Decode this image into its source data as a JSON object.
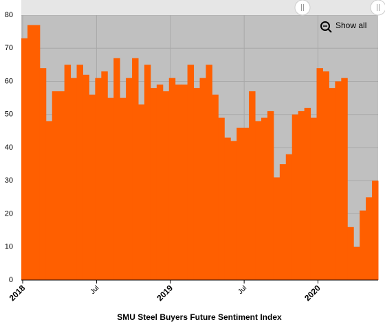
{
  "chart_data": {
    "type": "step-area",
    "title": "SMU Steel Buyers Future Sentiment Index",
    "zoom_button": "Show all",
    "categories": [
      "2018",
      null,
      null,
      null,
      null,
      null,
      null,
      null,
      null,
      null,
      null,
      null,
      "Jul",
      null,
      null,
      null,
      null,
      null,
      null,
      null,
      null,
      null,
      null,
      null,
      "2019",
      null,
      null,
      null,
      null,
      null,
      null,
      null,
      null,
      null,
      null,
      null,
      "Jul",
      null,
      null,
      null,
      null,
      null,
      null,
      null,
      null,
      null,
      null,
      null,
      "2020",
      null,
      null,
      null,
      null,
      null,
      null,
      null,
      null,
      null
    ],
    "values": [
      73,
      77,
      77,
      64,
      48,
      57,
      57,
      65,
      61,
      65,
      62,
      56,
      61,
      63,
      55,
      67,
      55,
      61,
      67,
      53,
      65,
      58,
      59,
      57,
      61,
      59,
      59,
      65,
      58,
      61,
      65,
      56,
      49,
      43,
      42,
      46,
      46,
      57,
      48,
      49,
      51,
      31,
      35,
      38,
      50,
      51,
      52,
      49,
      64,
      63,
      58,
      60,
      61,
      16,
      10,
      21,
      25,
      30
    ],
    "color": "#ff5f00",
    "ylim": [
      0,
      80
    ],
    "yticks": [
      0,
      10,
      20,
      30,
      40,
      50,
      60,
      70,
      80
    ],
    "grid": true
  }
}
